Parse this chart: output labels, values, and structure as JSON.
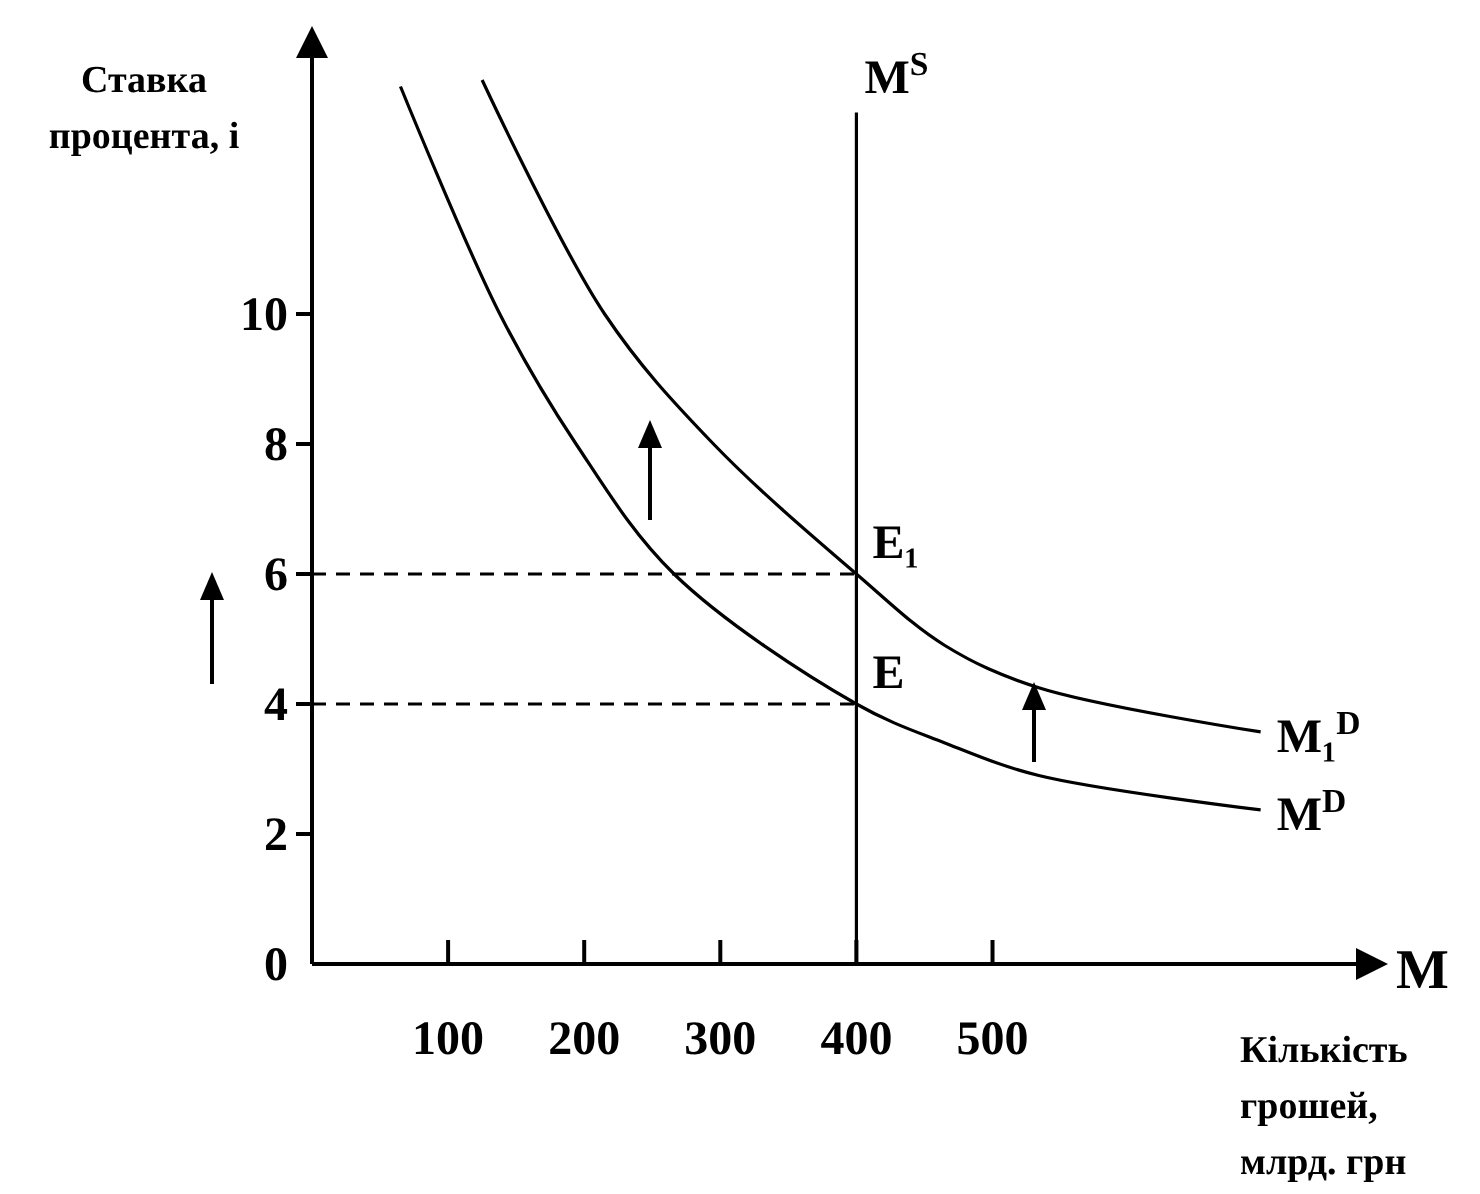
{
  "chart_data": {
    "type": "line",
    "ylabel": "Ставка процента, і",
    "xlabel": "Кількість грошей, млрд. грн",
    "xlim": [
      0,
      770
    ],
    "ylim": [
      0,
      14
    ],
    "xticks": [
      100,
      200,
      300,
      400,
      500
    ],
    "yticks": [
      0,
      2,
      4,
      6,
      8,
      10
    ],
    "series": [
      {
        "name": "M$^{D}$",
        "color": "#000000",
        "x": [
          65,
          138,
          194,
          266,
          400,
          465,
          534,
          697
        ],
        "values": [
          13.5,
          10,
          8,
          6,
          4,
          3.4,
          2.9,
          2.37
        ]
      },
      {
        "name": "M₁$^{D}$",
        "color": "#000000",
        "x": [
          125,
          215,
          295,
          400,
          465,
          534,
          697
        ],
        "values": [
          13.6,
          10,
          8,
          6,
          4.9,
          4.25,
          3.57
        ]
      },
      {
        "color": "#000000",
        "x": [
          0,
          400
        ],
        "values": [
          6,
          6
        ],
        "line_style": "dashed"
      },
      {
        "color": "#000000",
        "x": [
          0,
          400
        ],
        "values": [
          4,
          4
        ],
        "line_style": "dashed"
      }
    ],
    "ref_lines": [
      {
        "axis": "x",
        "value": 400,
        "label": "M$^{S}$"
      }
    ],
    "annotations": [
      {
        "text": "E₁",
        "x": 400,
        "y": 6
      },
      {
        "text": "E",
        "x": 400,
        "y": 4
      },
      "M"
    ]
  }
}
